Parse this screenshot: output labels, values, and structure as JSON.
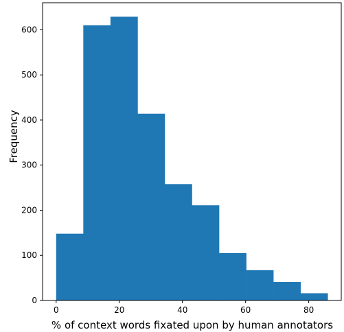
{
  "chart_data": {
    "type": "bar",
    "title": "",
    "xlabel": "% of context words fixated upon by human annotators",
    "ylabel": "Frequency",
    "bins": [
      {
        "x0": 0.0,
        "x1": 8.6,
        "value": 148
      },
      {
        "x0": 8.6,
        "x1": 17.2,
        "value": 610
      },
      {
        "x0": 17.2,
        "x1": 25.8,
        "value": 629
      },
      {
        "x0": 25.8,
        "x1": 34.4,
        "value": 414
      },
      {
        "x0": 34.4,
        "x1": 43.0,
        "value": 258
      },
      {
        "x0": 43.0,
        "x1": 51.6,
        "value": 211
      },
      {
        "x0": 51.6,
        "x1": 60.2,
        "value": 105
      },
      {
        "x0": 60.2,
        "x1": 68.8,
        "value": 67
      },
      {
        "x0": 68.8,
        "x1": 77.4,
        "value": 41
      },
      {
        "x0": 77.4,
        "x1": 86.0,
        "value": 16
      }
    ],
    "xlim": [
      -4.3,
      90.3
    ],
    "ylim": [
      0,
      660
    ],
    "xticks": [
      {
        "value": 0,
        "label": "0"
      },
      {
        "value": 20,
        "label": "20"
      },
      {
        "value": 40,
        "label": "40"
      },
      {
        "value": 60,
        "label": "60"
      },
      {
        "value": 80,
        "label": "80"
      }
    ],
    "yticks": [
      {
        "value": 0,
        "label": "0"
      },
      {
        "value": 100,
        "label": "100"
      },
      {
        "value": 200,
        "label": "200"
      },
      {
        "value": 300,
        "label": "300"
      },
      {
        "value": 400,
        "label": "400"
      },
      {
        "value": 500,
        "label": "500"
      },
      {
        "value": 600,
        "label": "600"
      }
    ],
    "bar_color": "#1f77b4",
    "grid": false,
    "legend": "none"
  }
}
